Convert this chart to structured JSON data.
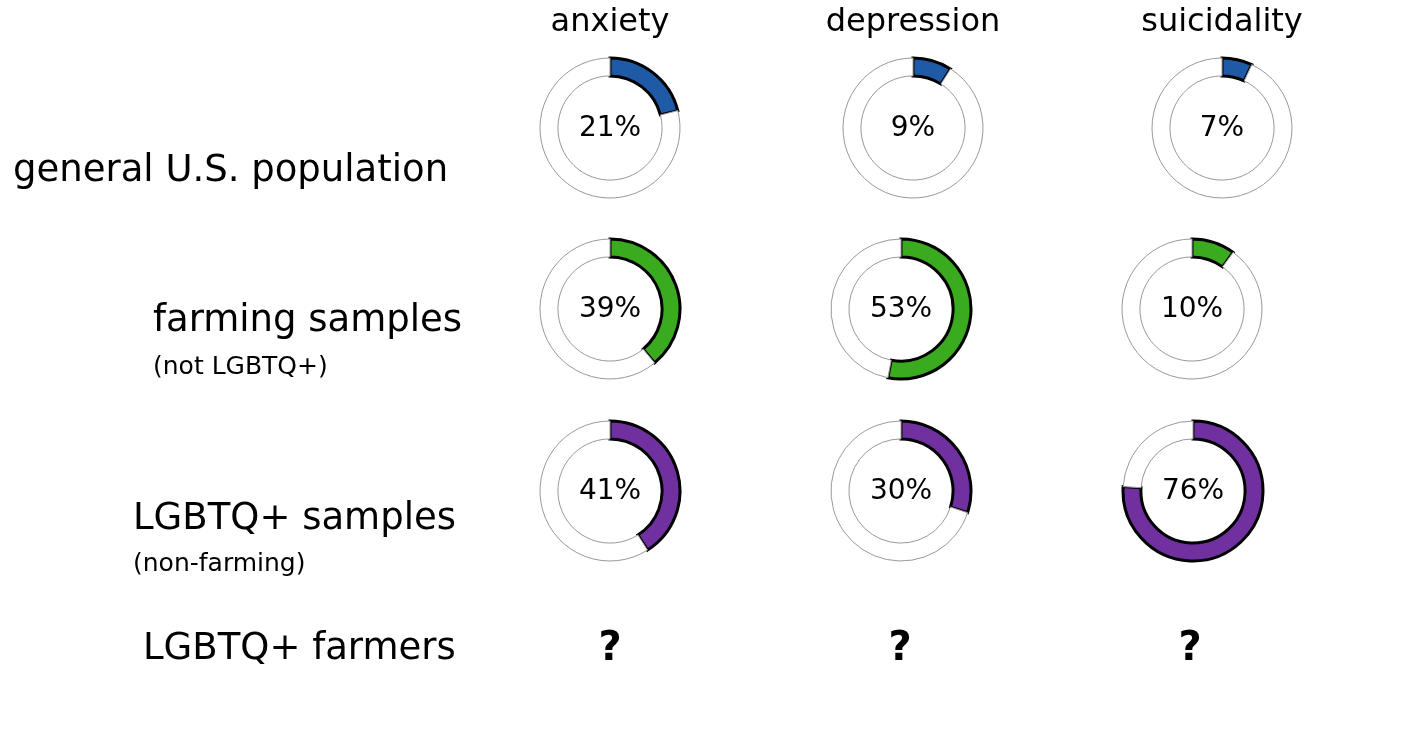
{
  "chart_data": [
    {
      "type": "other",
      "annotations": [
        "general U.S. population",
        "farming samples",
        "(not LGBTQ+)",
        "LGBTQ+ samples",
        "(non-farming)",
        "LGBTQ+ farmers",
        "?",
        "?",
        "?"
      ]
    },
    {
      "type": "donut",
      "title": "anxiety",
      "categories": [
        null,
        null
      ],
      "values": [
        21,
        79
      ],
      "colors": [
        "#1f5aa6",
        "#ffffff"
      ],
      "value_labels": [
        "21%",
        null
      ]
    },
    {
      "type": "donut",
      "title": "depression",
      "categories": [
        null,
        null
      ],
      "values": [
        9,
        91
      ],
      "colors": [
        "#1f5aa6",
        "#ffffff"
      ],
      "value_labels": [
        "9%",
        null
      ]
    },
    {
      "type": "donut",
      "title": "suicidality",
      "categories": [
        null,
        null
      ],
      "values": [
        7,
        93
      ],
      "colors": [
        "#1f5aa6",
        "#ffffff"
      ],
      "value_labels": [
        "7%",
        null
      ]
    },
    {
      "type": "donut",
      "categories": [
        null,
        null
      ],
      "values": [
        39,
        61
      ],
      "colors": [
        "#3aaa1e",
        "#ffffff"
      ],
      "value_labels": [
        "39%",
        null
      ]
    },
    {
      "type": "donut",
      "categories": [
        null,
        null
      ],
      "values": [
        53,
        47
      ],
      "colors": [
        "#3aaa1e",
        "#ffffff"
      ],
      "value_labels": [
        "53%",
        null
      ]
    },
    {
      "type": "donut",
      "categories": [
        null,
        null
      ],
      "values": [
        10,
        90
      ],
      "colors": [
        "#3aaa1e",
        "#ffffff"
      ],
      "value_labels": [
        "10%",
        null
      ]
    },
    {
      "type": "donut",
      "categories": [
        null,
        null
      ],
      "values": [
        41,
        59
      ],
      "colors": [
        "#7030a0",
        "#ffffff"
      ],
      "value_labels": [
        "41%",
        null
      ]
    },
    {
      "type": "donut",
      "categories": [
        null,
        null
      ],
      "values": [
        30,
        70
      ],
      "colors": [
        "#7030a0",
        "#ffffff"
      ],
      "value_labels": [
        "30%",
        null
      ]
    },
    {
      "type": "donut",
      "categories": [
        null,
        null
      ],
      "values": [
        76,
        24
      ],
      "colors": [
        "#7030a0",
        "#ffffff"
      ],
      "value_labels": [
        "76%",
        null
      ]
    }
  ]
}
